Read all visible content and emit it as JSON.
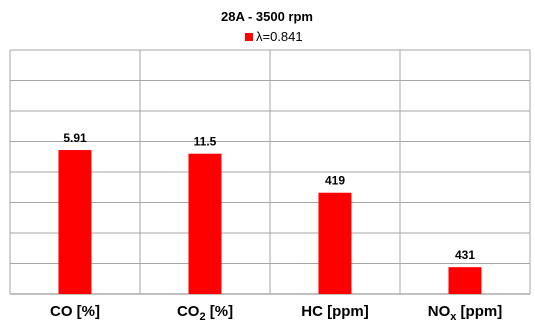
{
  "chart_data": {
    "type": "bar",
    "title": "28A - 3500 rpm",
    "legend": {
      "position": "top",
      "entries": [
        "λ=0.841"
      ]
    },
    "series": [
      {
        "name": "λ=0.841",
        "color": "#ff0000",
        "values": [
          5.91,
          11.5,
          419,
          431
        ],
        "labels": [
          "5.91",
          "11.5",
          "419",
          "431"
        ]
      }
    ],
    "categories": [
      {
        "main": "CO [%]",
        "sub": ""
      },
      {
        "main": "CO",
        "sub": "2",
        "tail": " [%]"
      },
      {
        "main": "HC [ppm]",
        "sub": ""
      },
      {
        "main": "NO",
        "sub": "x",
        "tail": "  [ppm]"
      }
    ],
    "bar_fraction_of_axis": [
      0.59,
      0.575,
      0.415,
      0.11
    ],
    "grid": true,
    "y_axis_visible": false,
    "note": "Each category uses its own independent scale; no y-axis tick labels are printed."
  }
}
